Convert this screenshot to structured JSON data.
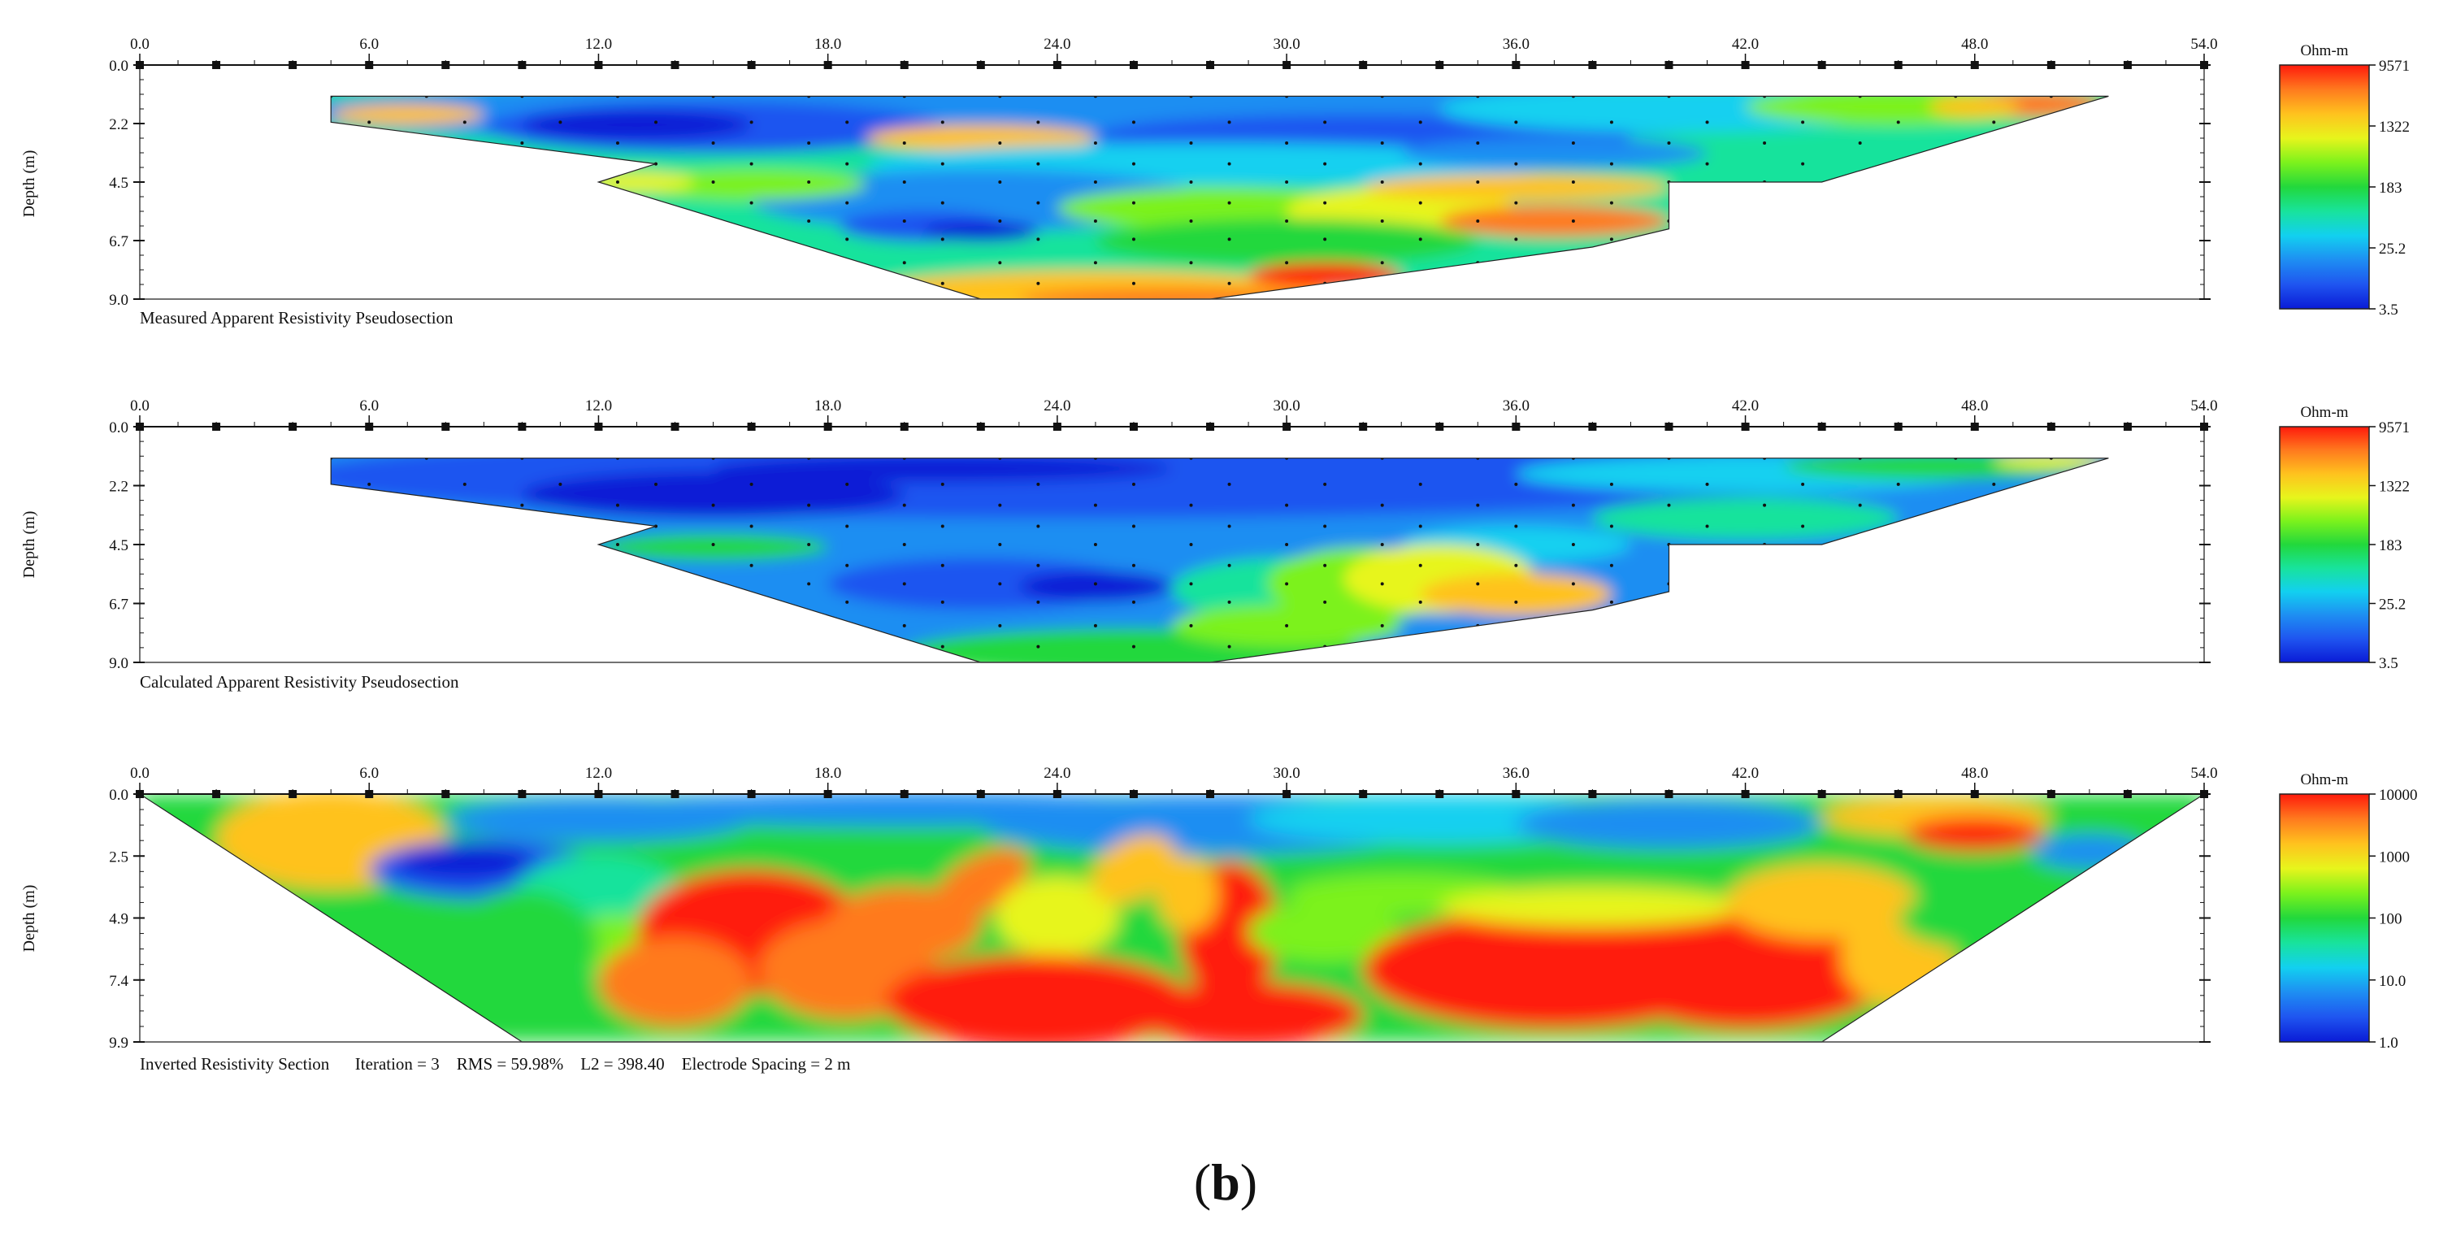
{
  "figure_label": {
    "open": "(",
    "letter": "b",
    "close": ")"
  },
  "colors": {
    "scale": [
      "#0a1bd6",
      "#1f55f0",
      "#1e8ef2",
      "#12d0f0",
      "#18e39c",
      "#22d83c",
      "#7cf21c",
      "#e7f51c",
      "#ffc21e",
      "#ff7a1e",
      "#ff1a0c"
    ]
  },
  "chart_data": [
    {
      "type": "heatmap",
      "name": "Measured Apparent Resistivity Pseudosection",
      "caption": "Measured Apparent Resistivity Pseudosection",
      "xlim": [
        0,
        54
      ],
      "x_ticks": [
        "0.0",
        "6.0",
        "12.0",
        "18.0",
        "24.0",
        "30.0",
        "36.0",
        "42.0",
        "48.0",
        "54.0"
      ],
      "ylabel": "Depth (m)",
      "y_ticks": [
        "0.0",
        "2.2",
        "4.5",
        "6.7",
        "9.0"
      ],
      "ylim": [
        0,
        9.0
      ],
      "colorbar": {
        "unit": "Ohm-m",
        "labels": [
          "9571",
          "1322",
          "183",
          "25.2",
          "3.5"
        ]
      },
      "section_outline_m": [
        [
          5,
          1.2
        ],
        [
          51.5,
          1.2
        ],
        [
          44,
          4.5
        ],
        [
          40,
          4.5
        ],
        [
          40,
          6.3
        ],
        [
          38,
          7.0
        ],
        [
          28,
          9.0
        ],
        [
          22,
          9.0
        ],
        [
          12,
          4.5
        ],
        [
          13.5,
          3.8
        ],
        [
          5,
          2.2
        ]
      ],
      "electrodes_m": [
        0,
        2,
        4,
        6,
        8,
        10,
        12,
        14,
        16,
        18,
        20,
        22,
        24,
        26,
        28,
        30,
        32,
        34,
        36,
        38,
        40,
        42,
        44,
        46,
        48,
        50,
        52,
        54
      ]
    },
    {
      "type": "heatmap",
      "name": "Calculated Apparent Resistivity Pseudosection",
      "caption": "Calculated Apparent Resistivity Pseudosection",
      "xlim": [
        0,
        54
      ],
      "x_ticks": [
        "0.0",
        "6.0",
        "12.0",
        "18.0",
        "24.0",
        "30.0",
        "36.0",
        "42.0",
        "48.0",
        "54.0"
      ],
      "ylabel": "Depth (m)",
      "y_ticks": [
        "0.0",
        "2.2",
        "4.5",
        "6.7",
        "9.0"
      ],
      "ylim": [
        0,
        9.0
      ],
      "colorbar": {
        "unit": "Ohm-m",
        "labels": [
          "9571",
          "1322",
          "183",
          "25.2",
          "3.5"
        ]
      },
      "section_outline_m": [
        [
          5,
          1.2
        ],
        [
          51.5,
          1.2
        ],
        [
          44,
          4.5
        ],
        [
          40,
          4.5
        ],
        [
          40,
          6.3
        ],
        [
          38,
          7.0
        ],
        [
          28,
          9.0
        ],
        [
          22,
          9.0
        ],
        [
          12,
          4.5
        ],
        [
          13.5,
          3.8
        ],
        [
          5,
          2.2
        ]
      ],
      "electrodes_m": [
        0,
        2,
        4,
        6,
        8,
        10,
        12,
        14,
        16,
        18,
        20,
        22,
        24,
        26,
        28,
        30,
        32,
        34,
        36,
        38,
        40,
        42,
        44,
        46,
        48,
        50,
        52,
        54
      ]
    },
    {
      "type": "heatmap",
      "name": "Inverted Resistivity Section",
      "caption": "Inverted Resistivity Section      Iteration = 3    RMS = 59.98%    L2 = 398.40    Electrode Spacing = 2 m",
      "xlim": [
        0,
        54
      ],
      "x_ticks": [
        "0.0",
        "6.0",
        "12.0",
        "18.0",
        "24.0",
        "30.0",
        "36.0",
        "42.0",
        "48.0",
        "54.0"
      ],
      "ylabel": "Depth (m)",
      "y_ticks": [
        "0.0",
        "2.5",
        "4.9",
        "7.4",
        "9.9"
      ],
      "ylim": [
        0,
        9.9
      ],
      "colorbar": {
        "unit": "Ohm-m",
        "labels": [
          "10000",
          "1000",
          "100",
          "10.0",
          "1.0"
        ]
      },
      "section_outline_m": [
        [
          0,
          0
        ],
        [
          54,
          0
        ],
        [
          44,
          9.9
        ],
        [
          10,
          9.9
        ]
      ],
      "electrodes_m": [
        0,
        2,
        4,
        6,
        8,
        10,
        12,
        14,
        16,
        18,
        20,
        22,
        24,
        26,
        28,
        30,
        32,
        34,
        36,
        38,
        40,
        42,
        44,
        46,
        48,
        50,
        52,
        54
      ]
    }
  ]
}
